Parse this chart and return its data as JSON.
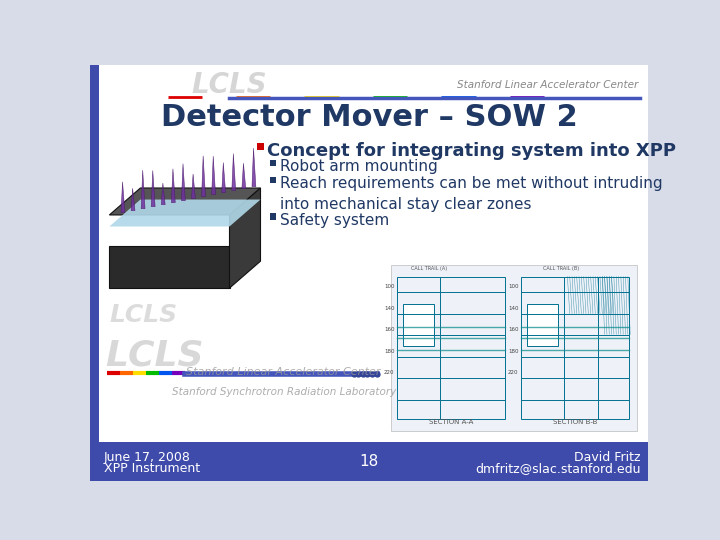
{
  "title": "Detector Mover – SOW 2",
  "title_color": "#1F3864",
  "title_fontsize": 22,
  "bg_slide": "#D8DCE8",
  "bg_content": "#FFFFFF",
  "bg_footer": "#3F4BAA",
  "bullet_main": "Concept for integrating system into XPP",
  "bullet_main_color_sq": "#CC0000",
  "bullet_main_fontsize": 13,
  "sub_bullets": [
    "Robot arm mounting",
    "Reach requirements can be met without intruding\ninto mechanical stay clear zones",
    "Safety system"
  ],
  "sub_bullet_color": "#1F3864",
  "sub_bullet_fontsize": 11,
  "footer_left_line1": "June 17, 2008",
  "footer_left_line2": "XPP Instrument",
  "footer_center": "18",
  "footer_right_line1": "David Fritz",
  "footer_right_line2": "dmfritz@slac.stanford.edu",
  "footer_color": "#FFFFFF",
  "footer_fontsize": 9,
  "header_right_text": "Stanford Linear Accelerator Center",
  "watermark_text1": "Stanford Linear Accelerator Center",
  "watermark_text2": "Stanford Synchrotron Radiation Laboratory"
}
